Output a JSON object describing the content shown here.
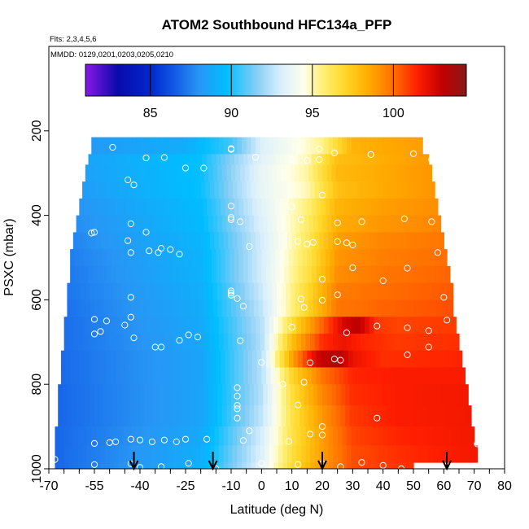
{
  "chart_data": {
    "type": "heatmap",
    "title": "ATOM2 Southbound HFC134a_PFP",
    "subtitle_flights": "Flts: 2,3,4,5,6",
    "subtitle_dates": "MMDD: 0129,0201,0203,0205,0210",
    "xlabel": "Latitude (deg N)",
    "ylabel": "PSXC (mbar)",
    "xlim": [
      -70,
      80
    ],
    "ylim": [
      1000,
      0
    ],
    "x_ticks": [
      -70,
      -55,
      -40,
      -25,
      -10,
      0,
      10,
      20,
      30,
      40,
      50,
      60,
      70,
      80
    ],
    "x_tick_labels": [
      "-70",
      "-55",
      "-40",
      "-25",
      "-10",
      "0",
      "10",
      "20",
      "30",
      "40",
      "50",
      "60",
      "70",
      "80"
    ],
    "y_ticks": [
      200,
      400,
      600,
      800,
      1000
    ],
    "y_tick_labels": [
      "200",
      "400",
      "600",
      "800",
      "1000"
    ],
    "colorbar": {
      "range": [
        81,
        104.5
      ],
      "ticks": [
        85,
        90,
        95,
        100
      ],
      "tick_labels": [
        "85",
        "90",
        "95",
        "100"
      ]
    },
    "layers": [
      {
        "p": [
          215,
          255
        ],
        "lat": [
          -56,
          53
        ],
        "w": [
          [
            -56,
            88.2
          ],
          [
            -25,
            89.0
          ],
          [
            -10,
            90.6
          ],
          [
            0,
            93.2
          ],
          [
            10,
            94.2
          ],
          [
            20,
            95.4
          ],
          [
            30,
            98.2
          ],
          [
            40,
            98.5
          ],
          [
            53,
            98.8
          ]
        ]
      },
      {
        "p": [
          255,
          280
        ],
        "lat": [
          -57,
          55
        ],
        "w": [
          [
            -57,
            88.6
          ],
          [
            -20,
            89.8
          ],
          [
            0,
            93.4
          ],
          [
            15,
            95.0
          ],
          [
            25,
            97.8
          ],
          [
            40,
            98.4
          ],
          [
            55,
            98.9
          ]
        ]
      },
      {
        "p": [
          280,
          320
        ],
        "lat": [
          -58,
          56
        ],
        "w": [
          [
            -58,
            88.5
          ],
          [
            -20,
            89.8
          ],
          [
            0,
            93.6
          ],
          [
            15,
            95.2
          ],
          [
            25,
            98.0
          ],
          [
            40,
            98.5
          ],
          [
            56,
            99.0
          ]
        ]
      },
      {
        "p": [
          320,
          360
        ],
        "lat": [
          -59,
          57
        ],
        "w": [
          [
            -59,
            88.3
          ],
          [
            -20,
            89.8
          ],
          [
            0,
            93.6
          ],
          [
            15,
            95.0
          ],
          [
            25,
            97.8
          ],
          [
            40,
            98.5
          ],
          [
            57,
            99.0
          ]
        ]
      },
      {
        "p": [
          360,
          400
        ],
        "lat": [
          -60,
          58
        ],
        "w": [
          [
            -60,
            88.0
          ],
          [
            -20,
            89.6
          ],
          [
            0,
            93.4
          ],
          [
            15,
            95.6
          ],
          [
            25,
            98.2
          ],
          [
            40,
            98.8
          ],
          [
            58,
            99.2
          ]
        ]
      },
      {
        "p": [
          400,
          440
        ],
        "lat": [
          -61,
          59
        ],
        "w": [
          [
            -61,
            87.8
          ],
          [
            -20,
            89.5
          ],
          [
            0,
            93.2
          ],
          [
            15,
            95.8
          ],
          [
            25,
            98.4
          ],
          [
            40,
            99.0
          ],
          [
            59,
            99.4
          ]
        ]
      },
      {
        "p": [
          440,
          480
        ],
        "lat": [
          -62,
          60
        ],
        "w": [
          [
            -62,
            87.6
          ],
          [
            -20,
            89.3
          ],
          [
            0,
            93.0
          ],
          [
            15,
            96.0
          ],
          [
            25,
            98.8
          ],
          [
            40,
            99.4
          ],
          [
            60,
            99.8
          ]
        ]
      },
      {
        "p": [
          480,
          520
        ],
        "lat": [
          -63,
          61
        ],
        "w": [
          [
            -63,
            87.4
          ],
          [
            -20,
            89.2
          ],
          [
            0,
            93.0
          ],
          [
            15,
            96.2
          ],
          [
            25,
            99.0
          ],
          [
            40,
            99.6
          ],
          [
            61,
            100.0
          ]
        ]
      },
      {
        "p": [
          520,
          560
        ],
        "lat": [
          -63,
          62
        ],
        "w": [
          [
            -63,
            87.3
          ],
          [
            -20,
            89.2
          ],
          [
            0,
            93.0
          ],
          [
            15,
            96.4
          ],
          [
            25,
            99.2
          ],
          [
            40,
            99.8
          ],
          [
            62,
            100.2
          ]
        ]
      },
      {
        "p": [
          560,
          600
        ],
        "lat": [
          -64,
          63
        ],
        "w": [
          [
            -64,
            87.2
          ],
          [
            -20,
            89.0
          ],
          [
            0,
            92.8
          ],
          [
            15,
            96.8
          ],
          [
            25,
            99.6
          ],
          [
            40,
            100.0
          ],
          [
            63,
            100.4
          ]
        ]
      },
      {
        "p": [
          600,
          640
        ],
        "lat": [
          -64,
          63
        ],
        "w": [
          [
            -64,
            87.1
          ],
          [
            -20,
            88.9
          ],
          [
            0,
            92.6
          ],
          [
            15,
            97.0
          ],
          [
            25,
            99.8
          ],
          [
            40,
            100.2
          ],
          [
            63,
            100.6
          ]
        ]
      },
      {
        "p": [
          640,
          680
        ],
        "lat": [
          -65,
          64
        ],
        "w": [
          [
            -65,
            87.0
          ],
          [
            -20,
            88.8
          ],
          [
            0,
            92.4
          ],
          [
            12,
            97.4
          ],
          [
            20,
            100.2
          ],
          [
            27,
            102.6
          ],
          [
            32,
            103.2
          ],
          [
            38,
            101.0
          ],
          [
            45,
            100.8
          ],
          [
            64,
            101.0
          ]
        ]
      },
      {
        "p": [
          680,
          720
        ],
        "lat": [
          -65,
          65
        ],
        "w": [
          [
            -65,
            87.0
          ],
          [
            -20,
            88.7
          ],
          [
            0,
            92.3
          ],
          [
            10,
            97.8
          ],
          [
            20,
            101.2
          ],
          [
            27,
            102.0
          ],
          [
            33,
            101.4
          ],
          [
            45,
            101.0
          ],
          [
            65,
            101.2
          ]
        ]
      },
      {
        "p": [
          720,
          760
        ],
        "lat": [
          -66,
          66
        ],
        "w": [
          [
            -66,
            86.9
          ],
          [
            -20,
            88.6
          ],
          [
            0,
            92.4
          ],
          [
            10,
            98.6
          ],
          [
            18,
            102.6
          ],
          [
            25,
            103.6
          ],
          [
            30,
            102.0
          ],
          [
            40,
            101.2
          ],
          [
            66,
            101.4
          ]
        ]
      },
      {
        "p": [
          760,
          800
        ],
        "lat": [
          -66,
          67
        ],
        "w": [
          [
            -66,
            86.9
          ],
          [
            -20,
            88.6
          ],
          [
            0,
            92.4
          ],
          [
            10,
            97.0
          ],
          [
            20,
            99.8
          ],
          [
            30,
            101.4
          ],
          [
            45,
            101.6
          ],
          [
            67,
            101.6
          ]
        ]
      },
      {
        "p": [
          800,
          850
        ],
        "lat": [
          -67,
          68
        ],
        "w": [
          [
            -67,
            86.8
          ],
          [
            -20,
            88.6
          ],
          [
            0,
            92.4
          ],
          [
            10,
            96.6
          ],
          [
            20,
            99.4
          ],
          [
            30,
            101.2
          ],
          [
            45,
            101.6
          ],
          [
            68,
            101.8
          ]
        ]
      },
      {
        "p": [
          850,
          900
        ],
        "lat": [
          -67,
          69
        ],
        "w": [
          [
            -67,
            86.8
          ],
          [
            -20,
            88.6
          ],
          [
            0,
            92.6
          ],
          [
            10,
            96.4
          ],
          [
            20,
            99.0
          ],
          [
            30,
            101.0
          ],
          [
            45,
            101.6
          ],
          [
            69,
            101.8
          ]
        ]
      },
      {
        "p": [
          900,
          945
        ],
        "lat": [
          -68,
          70
        ],
        "w": [
          [
            -68,
            86.8
          ],
          [
            -20,
            88.8
          ],
          [
            0,
            93.0
          ],
          [
            10,
            96.4
          ],
          [
            20,
            98.8
          ],
          [
            30,
            100.8
          ],
          [
            45,
            101.4
          ],
          [
            70,
            101.8
          ]
        ]
      },
      {
        "p": [
          945,
          985
        ],
        "lat": [
          -68,
          71
        ],
        "w": [
          [
            -68,
            86.8
          ],
          [
            -20,
            89.0
          ],
          [
            0,
            93.2
          ],
          [
            10,
            96.6
          ],
          [
            20,
            98.8
          ],
          [
            30,
            100.6
          ],
          [
            45,
            101.2
          ],
          [
            71,
            101.8
          ]
        ]
      },
      {
        "p": [
          985,
          1010
        ],
        "lat": [
          -68,
          50
        ],
        "w": [
          [
            -68,
            86.8
          ],
          [
            -20,
            89.2
          ],
          [
            0,
            93.4
          ],
          [
            10,
            96.8
          ],
          [
            20,
            99.0
          ],
          [
            30,
            100.6
          ],
          [
            50,
            101.2
          ]
        ]
      }
    ],
    "samples": [
      [
        -38,
        264
      ],
      [
        -32,
        263
      ],
      [
        -25,
        288
      ],
      [
        -19,
        288
      ],
      [
        -49,
        239
      ],
      [
        -44,
        316
      ],
      [
        -59,
        262
      ],
      [
        -10,
        242
      ],
      [
        -10,
        244
      ],
      [
        -2,
        262
      ],
      [
        10,
        268
      ],
      [
        19,
        268
      ],
      [
        15,
        270
      ],
      [
        19,
        243
      ],
      [
        24,
        252
      ],
      [
        36,
        256
      ],
      [
        50,
        254
      ],
      [
        56,
        268
      ],
      [
        -42,
        328
      ],
      [
        -43,
        420
      ],
      [
        -38,
        440
      ],
      [
        -10,
        378
      ],
      [
        -10,
        405
      ],
      [
        -10,
        410
      ],
      [
        -7,
        415
      ],
      [
        13,
        410
      ],
      [
        10,
        380
      ],
      [
        20,
        352
      ],
      [
        25,
        418
      ],
      [
        33,
        415
      ],
      [
        47,
        408
      ],
      [
        56,
        415
      ],
      [
        -55,
        440
      ],
      [
        -56,
        442
      ],
      [
        -44,
        460
      ],
      [
        -43,
        488
      ],
      [
        -37,
        484
      ],
      [
        -34,
        488
      ],
      [
        -33,
        478
      ],
      [
        -30,
        481
      ],
      [
        -27,
        492
      ],
      [
        12,
        462
      ],
      [
        17,
        464
      ],
      [
        15,
        468
      ],
      [
        25,
        462
      ],
      [
        28,
        465
      ],
      [
        30,
        470
      ],
      [
        -4,
        474
      ],
      [
        20,
        551
      ],
      [
        30,
        524
      ],
      [
        40,
        555
      ],
      [
        48,
        525
      ],
      [
        58,
        488
      ],
      [
        -43,
        594
      ],
      [
        -10,
        579
      ],
      [
        -10,
        584
      ],
      [
        -10,
        589
      ],
      [
        -8,
        597
      ],
      [
        -6,
        615
      ],
      [
        13,
        598
      ],
      [
        20,
        601
      ],
      [
        14,
        618
      ],
      [
        25,
        588
      ],
      [
        60,
        594
      ],
      [
        -55,
        646
      ],
      [
        -51,
        650
      ],
      [
        -45,
        660
      ],
      [
        -55,
        681
      ],
      [
        -53,
        675
      ],
      [
        -42,
        690
      ],
      [
        -43,
        641
      ],
      [
        -27,
        696
      ],
      [
        -24,
        683
      ],
      [
        -21,
        688
      ],
      [
        -35,
        712
      ],
      [
        -33,
        712
      ],
      [
        10,
        665
      ],
      [
        28,
        678
      ],
      [
        38,
        662
      ],
      [
        48,
        666
      ],
      [
        55,
        673
      ],
      [
        61,
        648
      ],
      [
        -68,
        640
      ],
      [
        -7,
        697
      ],
      [
        0,
        748
      ],
      [
        16,
        749
      ],
      [
        26,
        743
      ],
      [
        24,
        740
      ],
      [
        48,
        730
      ],
      [
        55,
        712
      ],
      [
        -8,
        808
      ],
      [
        -8,
        828
      ],
      [
        -8,
        850
      ],
      [
        -8,
        858
      ],
      [
        -8,
        880
      ],
      [
        7,
        800
      ],
      [
        12,
        849
      ],
      [
        14,
        795
      ],
      [
        20,
        900
      ],
      [
        20,
        920
      ],
      [
        -4,
        910
      ],
      [
        -6,
        933
      ],
      [
        -25,
        930
      ],
      [
        -18,
        930
      ],
      [
        -28,
        936
      ],
      [
        -32,
        932
      ],
      [
        -36,
        936
      ],
      [
        -40,
        932
      ],
      [
        -43,
        930
      ],
      [
        -48,
        936
      ],
      [
        -50,
        938
      ],
      [
        -55,
        940
      ],
      [
        -68,
        978
      ],
      [
        -55,
        990
      ],
      [
        -43,
        988
      ],
      [
        -40,
        997
      ],
      [
        -33,
        995
      ],
      [
        -24,
        987
      ],
      [
        -15,
        1000
      ],
      [
        0,
        987
      ],
      [
        12,
        990
      ],
      [
        20,
        988
      ],
      [
        26,
        995
      ],
      [
        33,
        985
      ],
      [
        40,
        992
      ],
      [
        46,
        1000
      ],
      [
        71,
        941
      ],
      [
        38,
        880
      ],
      [
        16,
        918
      ],
      [
        9,
        935
      ]
    ],
    "arrows_lat": [
      -42,
      -16,
      20,
      61
    ]
  }
}
